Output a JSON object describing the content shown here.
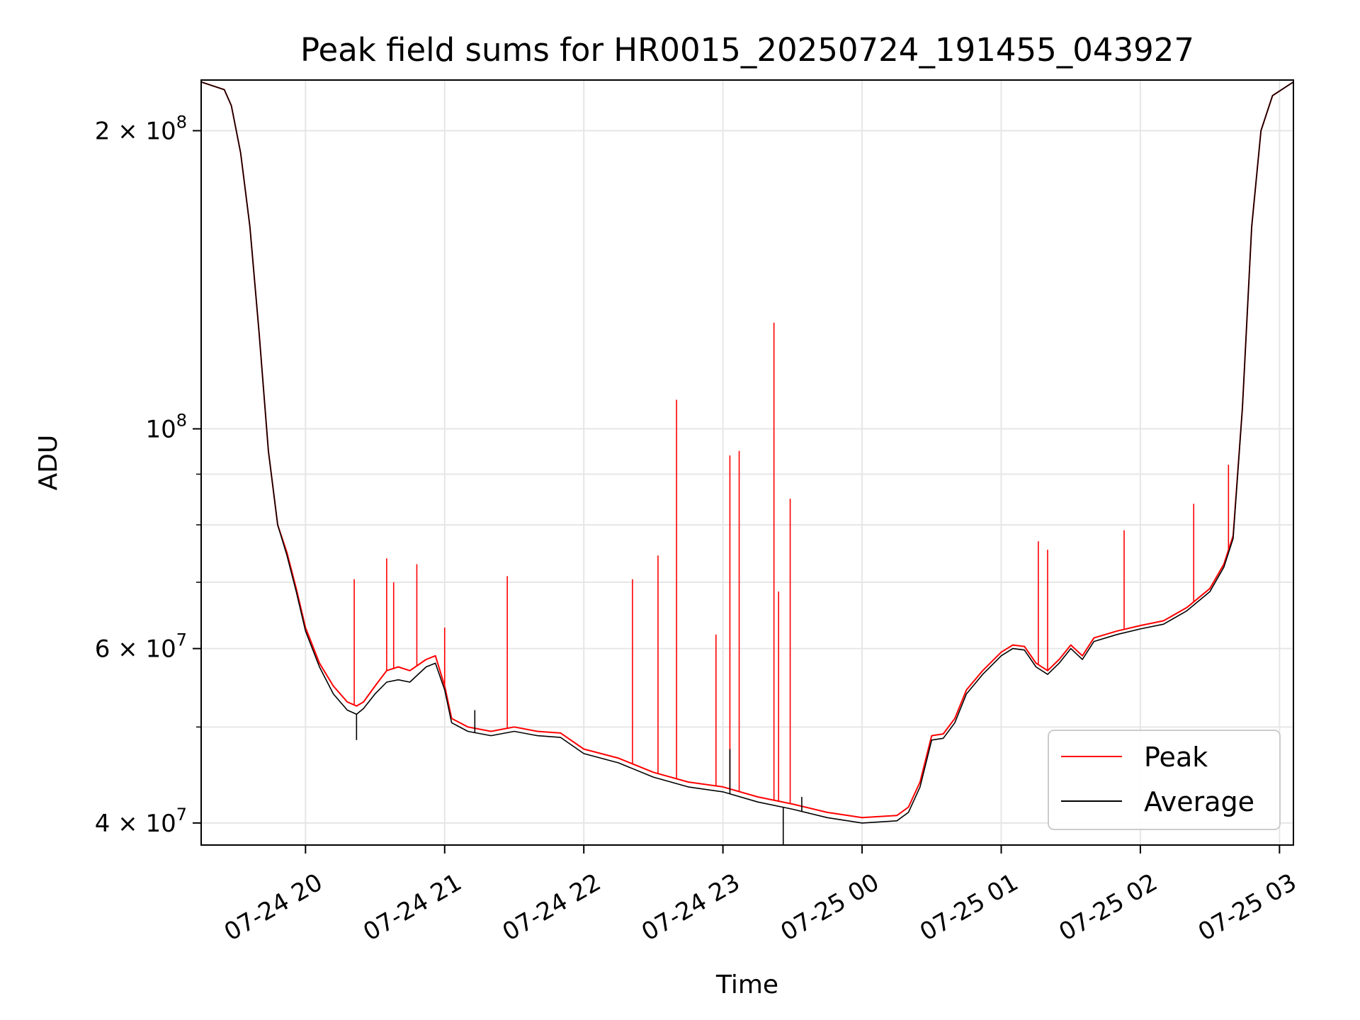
{
  "chart_data": {
    "type": "line",
    "title": "Peak field sums for HR0015_20250724_191455_043927",
    "xlabel": "Time",
    "ylabel": "ADU",
    "yscale": "log",
    "xlim": [
      "2025-07-24 19:15",
      "2025-07-25 03:06"
    ],
    "ylim": [
      38000000,
      225000000
    ],
    "grid": true,
    "legend_position": "lower-right",
    "x_ticks": [
      {
        "t": "2025-07-24 20:00",
        "label": "07-24 20"
      },
      {
        "t": "2025-07-24 21:00",
        "label": "07-24 21"
      },
      {
        "t": "2025-07-24 22:00",
        "label": "07-24 22"
      },
      {
        "t": "2025-07-24 23:00",
        "label": "07-24 23"
      },
      {
        "t": "2025-07-25 00:00",
        "label": "07-25 00"
      },
      {
        "t": "2025-07-25 01:00",
        "label": "07-25 01"
      },
      {
        "t": "2025-07-25 02:00",
        "label": "07-25 02"
      },
      {
        "t": "2025-07-25 03:00",
        "label": "07-25 03"
      }
    ],
    "y_ticks": [
      {
        "v": 40000000,
        "base": "4",
        "exp": "7"
      },
      {
        "v": 60000000,
        "base": "6",
        "exp": "7"
      },
      {
        "v": 100000000,
        "base": "",
        "exp": "8"
      },
      {
        "v": 200000000,
        "base": "2",
        "exp": "8"
      }
    ],
    "y_minor_ticks": [
      50000000,
      70000000,
      80000000,
      90000000
    ],
    "series": [
      {
        "name": "Peak",
        "color": "#ff0000",
        "points": [
          [
            "2025-07-24 19:15",
            224000000
          ],
          [
            "2025-07-24 19:25",
            220000000
          ],
          [
            "2025-07-24 19:28",
            212000000
          ],
          [
            "2025-07-24 19:32",
            190000000
          ],
          [
            "2025-07-24 19:36",
            160000000
          ],
          [
            "2025-07-24 19:40",
            125000000
          ],
          [
            "2025-07-24 19:44",
            95000000
          ],
          [
            "2025-07-24 19:48",
            80000000
          ],
          [
            "2025-07-24 19:52",
            75000000
          ],
          [
            "2025-07-24 19:56",
            69000000
          ],
          [
            "2025-07-24 20:00",
            63000000
          ],
          [
            "2025-07-24 20:06",
            58000000
          ],
          [
            "2025-07-24 20:12",
            55000000
          ],
          [
            "2025-07-24 20:18",
            53000000
          ],
          [
            "2025-07-24 20:22",
            52500000
          ],
          [
            "2025-07-24 20:25",
            53000000
          ],
          [
            "2025-07-24 20:30",
            55000000
          ],
          [
            "2025-07-24 20:35",
            57000000
          ],
          [
            "2025-07-24 20:40",
            57500000
          ],
          [
            "2025-07-24 20:45",
            57000000
          ],
          [
            "2025-07-24 20:52",
            58500000
          ],
          [
            "2025-07-24 20:56",
            59000000
          ],
          [
            "2025-07-24 21:00",
            55000000
          ],
          [
            "2025-07-24 21:03",
            51000000
          ],
          [
            "2025-07-24 21:10",
            50000000
          ],
          [
            "2025-07-24 21:20",
            49500000
          ],
          [
            "2025-07-24 21:30",
            50000000
          ],
          [
            "2025-07-24 21:40",
            49500000
          ],
          [
            "2025-07-24 21:50",
            49300000
          ],
          [
            "2025-07-24 22:00",
            47500000
          ],
          [
            "2025-07-24 22:15",
            46500000
          ],
          [
            "2025-07-24 22:30",
            45000000
          ],
          [
            "2025-07-24 22:45",
            44000000
          ],
          [
            "2025-07-24 23:00",
            43500000
          ],
          [
            "2025-07-24 23:15",
            42500000
          ],
          [
            "2025-07-24 23:30",
            41800000
          ],
          [
            "2025-07-24 23:45",
            41000000
          ],
          [
            "2025-07-25 00:00",
            40500000
          ],
          [
            "2025-07-25 00:15",
            40700000
          ],
          [
            "2025-07-25 00:20",
            41500000
          ],
          [
            "2025-07-25 00:25",
            44000000
          ],
          [
            "2025-07-25 00:30",
            49000000
          ],
          [
            "2025-07-25 00:35",
            49200000
          ],
          [
            "2025-07-25 00:40",
            51000000
          ],
          [
            "2025-07-25 00:45",
            54500000
          ],
          [
            "2025-07-25 00:52",
            57000000
          ],
          [
            "2025-07-25 01:00",
            59500000
          ],
          [
            "2025-07-25 01:05",
            60500000
          ],
          [
            "2025-07-25 01:10",
            60300000
          ],
          [
            "2025-07-25 01:15",
            58000000
          ],
          [
            "2025-07-25 01:20",
            57000000
          ],
          [
            "2025-07-25 01:25",
            58500000
          ],
          [
            "2025-07-25 01:30",
            60500000
          ],
          [
            "2025-07-25 01:35",
            59000000
          ],
          [
            "2025-07-25 01:40",
            61500000
          ],
          [
            "2025-07-25 01:50",
            62500000
          ],
          [
            "2025-07-25 02:00",
            63300000
          ],
          [
            "2025-07-25 02:10",
            64000000
          ],
          [
            "2025-07-25 02:20",
            66000000
          ],
          [
            "2025-07-25 02:30",
            69000000
          ],
          [
            "2025-07-25 02:36",
            73000000
          ],
          [
            "2025-07-25 02:40",
            78000000
          ],
          [
            "2025-07-25 02:44",
            105000000
          ],
          [
            "2025-07-25 02:48",
            160000000
          ],
          [
            "2025-07-25 02:52",
            200000000
          ],
          [
            "2025-07-25 02:57",
            217000000
          ],
          [
            "2025-07-25 03:06",
            224000000
          ]
        ],
        "spikes": [
          [
            "2025-07-24 20:21",
            70500000
          ],
          [
            "2025-07-24 20:35",
            74000000
          ],
          [
            "2025-07-24 20:38",
            70000000
          ],
          [
            "2025-07-24 20:48",
            73000000
          ],
          [
            "2025-07-24 21:00",
            63000000
          ],
          [
            "2025-07-24 21:27",
            71000000
          ],
          [
            "2025-07-24 22:21",
            70500000
          ],
          [
            "2025-07-24 22:32",
            74500000
          ],
          [
            "2025-07-24 22:40",
            107000000
          ],
          [
            "2025-07-24 22:57",
            62000000
          ],
          [
            "2025-07-24 23:03",
            94000000
          ],
          [
            "2025-07-24 23:07",
            95000000
          ],
          [
            "2025-07-24 23:22",
            128000000
          ],
          [
            "2025-07-24 23:24",
            68500000
          ],
          [
            "2025-07-24 23:29",
            85000000
          ],
          [
            "2025-07-25 01:16",
            77000000
          ],
          [
            "2025-07-25 01:20",
            75500000
          ],
          [
            "2025-07-25 01:53",
            79000000
          ],
          [
            "2025-07-25 02:23",
            84000000
          ],
          [
            "2025-07-25 02:38",
            92000000
          ]
        ]
      },
      {
        "name": "Average",
        "color": "#000000",
        "points": [
          [
            "2025-07-24 19:15",
            224000000
          ],
          [
            "2025-07-24 19:25",
            220000000
          ],
          [
            "2025-07-24 19:28",
            212000000
          ],
          [
            "2025-07-24 19:32",
            190000000
          ],
          [
            "2025-07-24 19:36",
            160000000
          ],
          [
            "2025-07-24 19:40",
            125000000
          ],
          [
            "2025-07-24 19:44",
            95000000
          ],
          [
            "2025-07-24 19:48",
            80000000
          ],
          [
            "2025-07-24 19:52",
            74500000
          ],
          [
            "2025-07-24 19:56",
            68500000
          ],
          [
            "2025-07-24 20:00",
            62500000
          ],
          [
            "2025-07-24 20:06",
            57500000
          ],
          [
            "2025-07-24 20:12",
            54000000
          ],
          [
            "2025-07-24 20:18",
            52000000
          ],
          [
            "2025-07-24 20:22",
            51500000
          ],
          [
            "2025-07-24 20:25",
            52200000
          ],
          [
            "2025-07-24 20:30",
            54000000
          ],
          [
            "2025-07-24 20:35",
            55500000
          ],
          [
            "2025-07-24 20:40",
            55800000
          ],
          [
            "2025-07-24 20:45",
            55500000
          ],
          [
            "2025-07-24 20:52",
            57500000
          ],
          [
            "2025-07-24 20:56",
            58000000
          ],
          [
            "2025-07-24 21:00",
            54500000
          ],
          [
            "2025-07-24 21:03",
            50500000
          ],
          [
            "2025-07-24 21:10",
            49500000
          ],
          [
            "2025-07-24 21:20",
            49000000
          ],
          [
            "2025-07-24 21:30",
            49500000
          ],
          [
            "2025-07-24 21:40",
            49000000
          ],
          [
            "2025-07-24 21:50",
            48800000
          ],
          [
            "2025-07-24 22:00",
            47000000
          ],
          [
            "2025-07-24 22:15",
            46000000
          ],
          [
            "2025-07-24 22:30",
            44500000
          ],
          [
            "2025-07-24 22:45",
            43500000
          ],
          [
            "2025-07-24 23:00",
            43000000
          ],
          [
            "2025-07-24 23:15",
            42000000
          ],
          [
            "2025-07-24 23:30",
            41300000
          ],
          [
            "2025-07-24 23:45",
            40500000
          ],
          [
            "2025-07-25 00:00",
            40000000
          ],
          [
            "2025-07-25 00:15",
            40200000
          ],
          [
            "2025-07-25 00:20",
            41000000
          ],
          [
            "2025-07-25 00:25",
            43500000
          ],
          [
            "2025-07-25 00:30",
            48500000
          ],
          [
            "2025-07-25 00:35",
            48700000
          ],
          [
            "2025-07-25 00:40",
            50500000
          ],
          [
            "2025-07-25 00:45",
            54000000
          ],
          [
            "2025-07-25 00:52",
            56500000
          ],
          [
            "2025-07-25 01:00",
            59000000
          ],
          [
            "2025-07-25 01:05",
            60000000
          ],
          [
            "2025-07-25 01:10",
            59800000
          ],
          [
            "2025-07-25 01:15",
            57500000
          ],
          [
            "2025-07-25 01:20",
            56500000
          ],
          [
            "2025-07-25 01:25",
            58000000
          ],
          [
            "2025-07-25 01:30",
            60000000
          ],
          [
            "2025-07-25 01:35",
            58500000
          ],
          [
            "2025-07-25 01:40",
            61000000
          ],
          [
            "2025-07-25 01:50",
            62000000
          ],
          [
            "2025-07-25 02:00",
            62800000
          ],
          [
            "2025-07-25 02:10",
            63500000
          ],
          [
            "2025-07-25 02:20",
            65500000
          ],
          [
            "2025-07-25 02:30",
            68500000
          ],
          [
            "2025-07-25 02:36",
            72500000
          ],
          [
            "2025-07-25 02:40",
            77500000
          ],
          [
            "2025-07-25 02:44",
            105000000
          ],
          [
            "2025-07-25 02:48",
            160000000
          ],
          [
            "2025-07-25 02:52",
            200000000
          ],
          [
            "2025-07-25 02:57",
            217000000
          ],
          [
            "2025-07-25 03:06",
            224000000
          ]
        ],
        "spikes": [
          [
            "2025-07-24 20:22",
            48500000
          ],
          [
            "2025-07-24 21:13",
            52000000
          ],
          [
            "2025-07-24 23:03",
            47500000
          ],
          [
            "2025-07-24 23:26",
            38000000
          ],
          [
            "2025-07-24 23:34",
            42500000
          ]
        ]
      }
    ]
  }
}
